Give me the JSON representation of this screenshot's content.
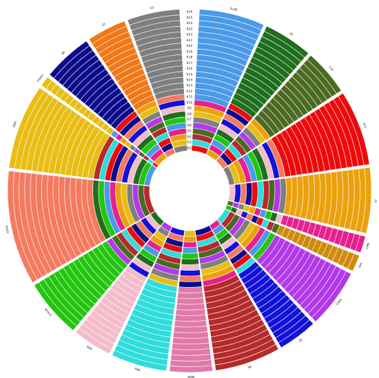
{
  "chart_data": {
    "type": "circular-admixture",
    "title": "",
    "k_labels": [
      "K2",
      "K3",
      "K4",
      "K5",
      "K6",
      "K7",
      "K8",
      "K9",
      "K10",
      "K11",
      "K12",
      "K13",
      "K14",
      "K15",
      "K16",
      "K17",
      "K18",
      "K19",
      "K20",
      "K21",
      "K22",
      "K23",
      "K24",
      "K25",
      "K26"
    ],
    "groups": [
      {
        "name": "SudB",
        "weight": 1.0,
        "color": "#4a9ae8"
      },
      {
        "name": "ZE",
        "weight": 0.75,
        "color": "#1e6e1e"
      },
      {
        "name": "CHI",
        "weight": 0.7,
        "color": "#4a6a22"
      },
      {
        "name": "Kr2",
        "weight": 1.15,
        "color": "#ee0a0a"
      },
      {
        "name": "Kr",
        "weight": 1.0,
        "color": "#eba10e"
      },
      {
        "name": "CMB",
        "weight": 0.25,
        "color": "#e8208e"
      },
      {
        "name": "NHI",
        "weight": 0.25,
        "color": "#cf8a0c"
      },
      {
        "name": "CMW",
        "weight": 0.9,
        "color": "#b238e8"
      },
      {
        "name": "ZE",
        "weight": 0.6,
        "color": "#1212d8"
      },
      {
        "name": "SB",
        "weight": 1.0,
        "color": "#b52a2a"
      },
      {
        "name": "BMM",
        "weight": 0.65,
        "color": "#e07aa8"
      },
      {
        "name": "FNK",
        "weight": 0.85,
        "color": "#30dcdc"
      },
      {
        "name": "RKB",
        "weight": 0.6,
        "color": "#f2bccb"
      },
      {
        "name": "Bhhh1",
        "weight": 0.9,
        "color": "#22c60e"
      },
      {
        "name": "RHS2",
        "weight": 1.75,
        "color": "#f47a60"
      },
      {
        "name": "DMH",
        "weight": 1.3,
        "color": "#e8bd14"
      },
      {
        "name": "HWaH",
        "weight": 0.15,
        "color": "#e8bd14"
      },
      {
        "name": "BE",
        "weight": 0.75,
        "color": "#0c0c8a"
      },
      {
        "name": "ZE",
        "weight": 0.6,
        "color": "#f07818"
      },
      {
        "name": "G2",
        "weight": 0.8,
        "color": "#7f7f7f"
      }
    ]
  }
}
